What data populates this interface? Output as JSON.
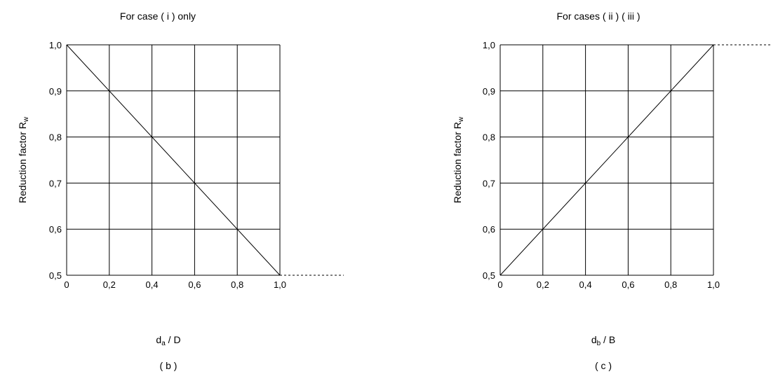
{
  "chart_data": [
    {
      "type": "line",
      "title": "For case ( i ) only",
      "xlabel": {
        "main": "d",
        "sub": "a",
        "rest": " / D"
      },
      "ylabel": {
        "main": "Reduction factor R",
        "sub": "w"
      },
      "caption": "( b )",
      "x": [
        0,
        0.2,
        0.4,
        0.6,
        0.8,
        1.0
      ],
      "xticks": [
        "0",
        "0,2",
        "0,4",
        "0,6",
        "0,8",
        "1,0"
      ],
      "yticks": [
        "0,5",
        "0,6",
        "0,7",
        "0,8",
        "0,9",
        "1,0"
      ],
      "xlim": [
        0,
        1.0
      ],
      "ylim": [
        0.5,
        1.0
      ],
      "grid": true,
      "series": [
        {
          "x": [
            0,
            1.0
          ],
          "y": [
            1.0,
            0.5
          ]
        }
      ],
      "dashed_extension": {
        "at_y": 0.5,
        "side": "right"
      }
    },
    {
      "type": "line",
      "title": "For cases ( ii )  ( iii )",
      "xlabel": {
        "main": "d",
        "sub": "b",
        "rest": " / B"
      },
      "ylabel": {
        "main": "Reduction factor R",
        "sub": "w"
      },
      "caption": "( c )",
      "x": [
        0,
        0.2,
        0.4,
        0.6,
        0.8,
        1.0
      ],
      "xticks": [
        "0",
        "0,2",
        "0,4",
        "0,6",
        "0,8",
        "1,0"
      ],
      "yticks": [
        "0,5",
        "0,6",
        "0,7",
        "0,8",
        "0,9",
        "1,0"
      ],
      "xlim": [
        0,
        1.0
      ],
      "ylim": [
        0.5,
        1.0
      ],
      "grid": true,
      "series": [
        {
          "x": [
            0,
            1.0
          ],
          "y": [
            0.5,
            1.0
          ]
        }
      ],
      "dashed_extension": {
        "at_y": 1.0,
        "side": "right"
      }
    }
  ]
}
